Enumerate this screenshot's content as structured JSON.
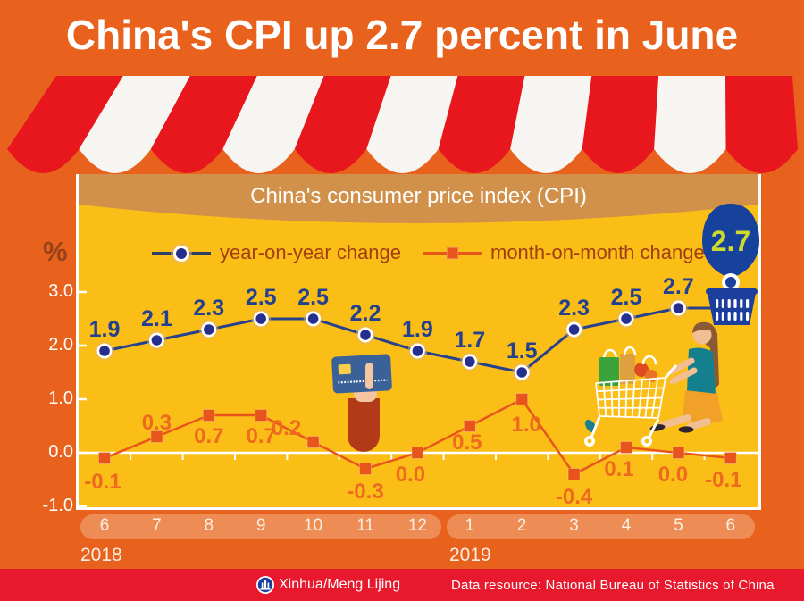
{
  "page_title": "China's CPI up 2.7 percent in June",
  "chart_data": {
    "type": "line",
    "title": "China's consumer price index (CPI)",
    "unit": "%",
    "ylim": [
      -1.0,
      3.0
    ],
    "y_ticks": [
      3.0,
      2.0,
      1.0,
      0.0,
      -1.0
    ],
    "grid": "zero-line-only",
    "legend_position": "top-center",
    "x_groups": [
      {
        "year": "2018",
        "months": [
          "6",
          "7",
          "8",
          "9",
          "10",
          "11",
          "12"
        ]
      },
      {
        "year": "2019",
        "months": [
          "1",
          "2",
          "3",
          "4",
          "5",
          "6"
        ]
      }
    ],
    "categories": [
      "2018-6",
      "2018-7",
      "2018-8",
      "2018-9",
      "2018-10",
      "2018-11",
      "2018-12",
      "2019-1",
      "2019-2",
      "2019-3",
      "2019-4",
      "2019-5",
      "2019-6"
    ],
    "series": [
      {
        "name": "year-on-year change",
        "marker": "circle",
        "color": "#28418C",
        "values": [
          1.9,
          2.1,
          2.3,
          2.5,
          2.5,
          2.2,
          1.9,
          1.7,
          1.5,
          2.3,
          2.5,
          2.7,
          2.7
        ]
      },
      {
        "name": "month-on-month change",
        "marker": "square",
        "color": "#E8551C",
        "values": [
          -0.1,
          0.3,
          0.7,
          0.7,
          0.2,
          -0.3,
          0.0,
          0.5,
          1.0,
          -0.4,
          0.1,
          0.0,
          -0.1
        ]
      }
    ],
    "highlight": {
      "label": "2.7",
      "note": "last year-on-year value shown in balloon over shopping basket"
    }
  },
  "footer": {
    "credit": "Xinhua/Meng Lijing",
    "source": "Data resource: National Bureau of Statistics of China"
  },
  "colors": {
    "background_orange": "#E8621D",
    "panel_yellow": "#FBBE16",
    "canopy_tan": "#D2914B",
    "awning_red": "#E8161D",
    "awning_white": "#F7F5F2",
    "footer_red": "#E8182D",
    "yoy_navy": "#28418C",
    "yoy_label_navy": "#24418F",
    "mom_orange": "#E8551C",
    "mom_label_orange": "#ED6A1F",
    "legend_text_brown": "#A13E13",
    "balloon_blue": "#16429B",
    "balloon_text_green": "#CDDA2E",
    "pill_orange": "#EE8C55"
  }
}
